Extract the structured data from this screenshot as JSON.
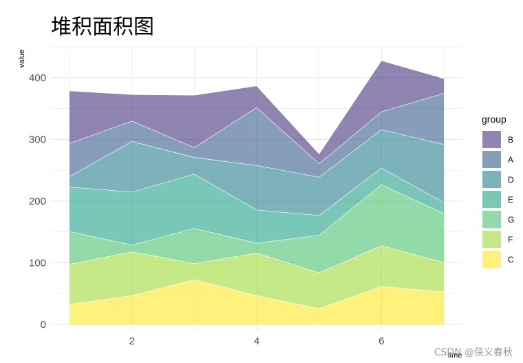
{
  "chart_data": {
    "type": "area",
    "stacked": true,
    "title": "堆积面积图",
    "xlabel": "time",
    "ylabel": "value",
    "x": [
      1,
      2,
      3,
      4,
      5,
      6,
      7
    ],
    "xlim": [
      1,
      7
    ],
    "ylim": [
      -10,
      450
    ],
    "xticks": [
      2,
      4,
      6
    ],
    "yticks": [
      0,
      100,
      200,
      300,
      400
    ],
    "grid": true,
    "legend_title": "group",
    "legend_position": "right",
    "stack_order": [
      "C",
      "F",
      "G",
      "E",
      "D",
      "A",
      "B"
    ],
    "legend_order": [
      "B",
      "A",
      "D",
      "E",
      "G",
      "F",
      "C"
    ],
    "series": [
      {
        "name": "C",
        "color": "#fde725",
        "values": [
          33,
          47,
          73,
          47,
          26,
          62,
          53
        ]
      },
      {
        "name": "F",
        "color": "#a0da39",
        "values": [
          65,
          71,
          26,
          69,
          58,
          66,
          48
        ]
      },
      {
        "name": "G",
        "color": "#4ac16d",
        "values": [
          53,
          11,
          57,
          16,
          61,
          99,
          79
        ]
      },
      {
        "name": "E",
        "color": "#1fa187",
        "values": [
          72,
          86,
          88,
          54,
          32,
          27,
          18
        ]
      },
      {
        "name": "D",
        "color": "#277f8e",
        "values": [
          17,
          82,
          27,
          72,
          62,
          62,
          94
        ]
      },
      {
        "name": "A",
        "color": "#365c8d",
        "values": [
          54,
          33,
          16,
          94,
          22,
          29,
          83
        ]
      },
      {
        "name": "B",
        "color": "#46327e",
        "values": [
          85,
          43,
          85,
          35,
          16,
          83,
          24
        ]
      }
    ]
  },
  "watermark": "CSDN @侠义春秋"
}
